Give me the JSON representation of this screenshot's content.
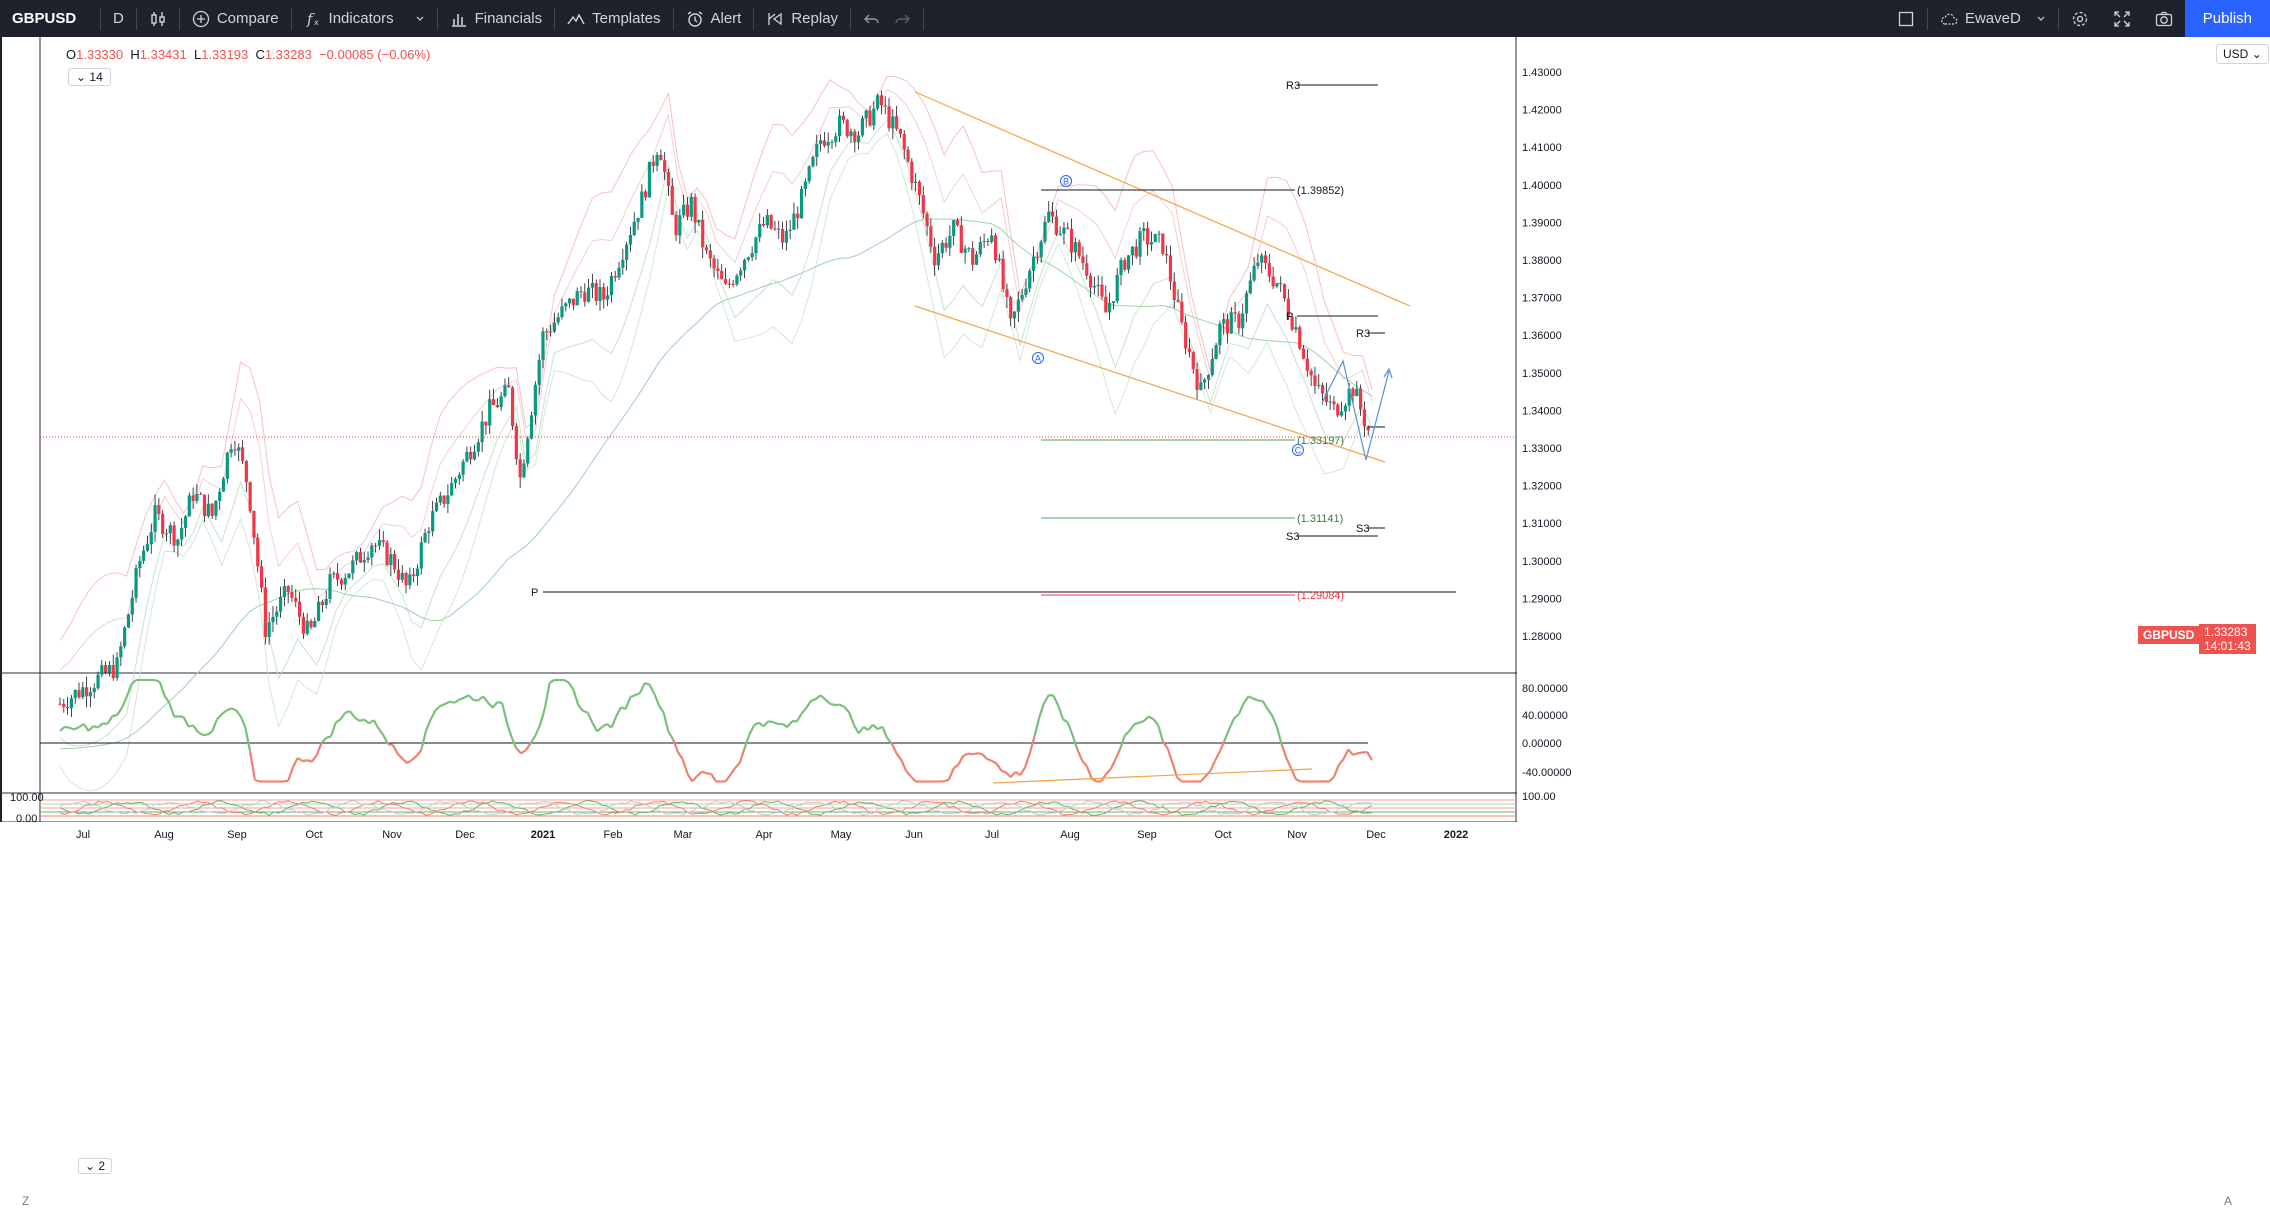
{
  "toolbar": {
    "symbol": "GBPUSD",
    "interval": "D",
    "compare": "Compare",
    "indicators": "Indicators",
    "financials": "Financials",
    "templates": "Templates",
    "alert": "Alert",
    "replay": "Replay",
    "layout_name": "EwaveD",
    "publish": "Publish"
  },
  "legend": {
    "o_label": "O",
    "o": "1.33330",
    "h_label": "H",
    "h": "1.33431",
    "l_label": "L",
    "l": "1.33193",
    "c_label": "C",
    "c": "1.33283",
    "change": "−0.00085 (−0.06%)",
    "study_param": "14",
    "study2_param": "2"
  },
  "currency": "USD",
  "last_price": {
    "symbol": "GBPUSD",
    "price": "1.33283",
    "countdown": "14:01:43"
  },
  "colors": {
    "bull": "#089981",
    "bear": "#f23645",
    "channel": "#f7a347",
    "rsi_up": "#7bbf7b",
    "rsi_down": "#f08070",
    "accent": "#2962ff"
  },
  "chart_data": [
    {
      "type": "candlestick",
      "symbol": "GBPUSD",
      "interval": "D",
      "y_range": [
        1.27,
        1.44
      ],
      "y_ticks": [
        "1.43000",
        "1.42000",
        "1.41000",
        "1.40000",
        "1.39000",
        "1.38000",
        "1.37000",
        "1.36000",
        "1.35000",
        "1.34000",
        "1.33000",
        "1.32000",
        "1.31000",
        "1.30000",
        "1.29000",
        "1.28000"
      ],
      "x_ticks": [
        "Jul",
        "Aug",
        "Sep",
        "Oct",
        "Nov",
        "Dec",
        "2021",
        "Feb",
        "Mar",
        "Apr",
        "May",
        "Jun",
        "Jul",
        "Aug",
        "Sep",
        "Oct",
        "Nov",
        "Dec",
        "2022"
      ],
      "close_path": [
        {
          "t": 0.0,
          "v": 1.262
        },
        {
          "t": 3.0,
          "v": 1.272
        },
        {
          "t": 4.2,
          "v": 1.3
        },
        {
          "t": 5.0,
          "v": 1.312
        },
        {
          "t": 6.2,
          "v": 1.306
        },
        {
          "t": 7.0,
          "v": 1.318
        },
        {
          "t": 8.0,
          "v": 1.312
        },
        {
          "t": 9.1,
          "v": 1.334
        },
        {
          "t": 9.9,
          "v": 1.32
        },
        {
          "t": 10.8,
          "v": 1.282
        },
        {
          "t": 12.0,
          "v": 1.292
        },
        {
          "t": 13.1,
          "v": 1.28
        },
        {
          "t": 14.2,
          "v": 1.294
        },
        {
          "t": 15.3,
          "v": 1.298
        },
        {
          "t": 16.4,
          "v": 1.305
        },
        {
          "t": 17.5,
          "v": 1.3
        },
        {
          "t": 18.3,
          "v": 1.292
        },
        {
          "t": 19.4,
          "v": 1.31
        },
        {
          "t": 20.6,
          "v": 1.32
        },
        {
          "t": 21.6,
          "v": 1.33
        },
        {
          "t": 22.6,
          "v": 1.34
        },
        {
          "t": 23.6,
          "v": 1.345
        },
        {
          "t": 24.2,
          "v": 1.322
        },
        {
          "t": 25.4,
          "v": 1.36
        },
        {
          "t": 26.4,
          "v": 1.366
        },
        {
          "t": 27.5,
          "v": 1.372
        },
        {
          "t": 28.6,
          "v": 1.37
        },
        {
          "t": 29.6,
          "v": 1.383
        },
        {
          "t": 30.6,
          "v": 1.396
        },
        {
          "t": 31.5,
          "v": 1.412
        },
        {
          "t": 32.3,
          "v": 1.388
        },
        {
          "t": 33.2,
          "v": 1.395
        },
        {
          "t": 34.0,
          "v": 1.381
        },
        {
          "t": 35.0,
          "v": 1.372
        },
        {
          "t": 36.0,
          "v": 1.381
        },
        {
          "t": 37.1,
          "v": 1.39
        },
        {
          "t": 38.1,
          "v": 1.385
        },
        {
          "t": 39.0,
          "v": 1.396
        },
        {
          "t": 40.0,
          "v": 1.412
        },
        {
          "t": 41.0,
          "v": 1.416
        },
        {
          "t": 42.0,
          "v": 1.414
        },
        {
          "t": 43.1,
          "v": 1.422
        },
        {
          "t": 44.2,
          "v": 1.412
        },
        {
          "t": 45.1,
          "v": 1.398
        },
        {
          "t": 46.0,
          "v": 1.381
        },
        {
          "t": 47.0,
          "v": 1.388
        },
        {
          "t": 48.0,
          "v": 1.38
        },
        {
          "t": 49.0,
          "v": 1.388
        },
        {
          "t": 50.0,
          "v": 1.362
        },
        {
          "t": 51.0,
          "v": 1.378
        },
        {
          "t": 52.0,
          "v": 1.392
        },
        {
          "t": 53.0,
          "v": 1.386
        },
        {
          "t": 54.0,
          "v": 1.378
        },
        {
          "t": 55.0,
          "v": 1.366
        },
        {
          "t": 56.0,
          "v": 1.38
        },
        {
          "t": 57.0,
          "v": 1.386
        },
        {
          "t": 58.0,
          "v": 1.384
        },
        {
          "t": 59.0,
          "v": 1.362
        },
        {
          "t": 60.0,
          "v": 1.345
        },
        {
          "t": 61.0,
          "v": 1.362
        },
        {
          "t": 62.0,
          "v": 1.364
        },
        {
          "t": 63.0,
          "v": 1.38
        },
        {
          "t": 64.0,
          "v": 1.374
        },
        {
          "t": 65.0,
          "v": 1.362
        },
        {
          "t": 66.0,
          "v": 1.346
        },
        {
          "t": 67.0,
          "v": 1.34
        },
        {
          "t": 68.0,
          "v": 1.346
        },
        {
          "t": 69.0,
          "v": 1.332
        }
      ]
    },
    {
      "type": "line",
      "name": "RSI",
      "y_ticks": [
        "80.00000",
        "40.00000",
        "0.00000",
        "-40.00000"
      ],
      "y_range": [
        -70,
        100
      ]
    },
    {
      "type": "line",
      "y_ticks": [
        "100.00",
        "0.00"
      ],
      "y_range": [
        0,
        100
      ]
    }
  ],
  "annotations": {
    "pivots": {
      "r3_top": "R3",
      "p_left": "P",
      "p_right": "P",
      "r3_right": "R3",
      "s3_right": "S3",
      "s3_bottom": "S3"
    },
    "levels": {
      "l1": "(1.39852)",
      "l2": "(1.33197)",
      "l3": "(1.31141)",
      "l4": "(1.29084)"
    },
    "waves": {
      "a": "A",
      "b": "B",
      "c": "C"
    }
  }
}
